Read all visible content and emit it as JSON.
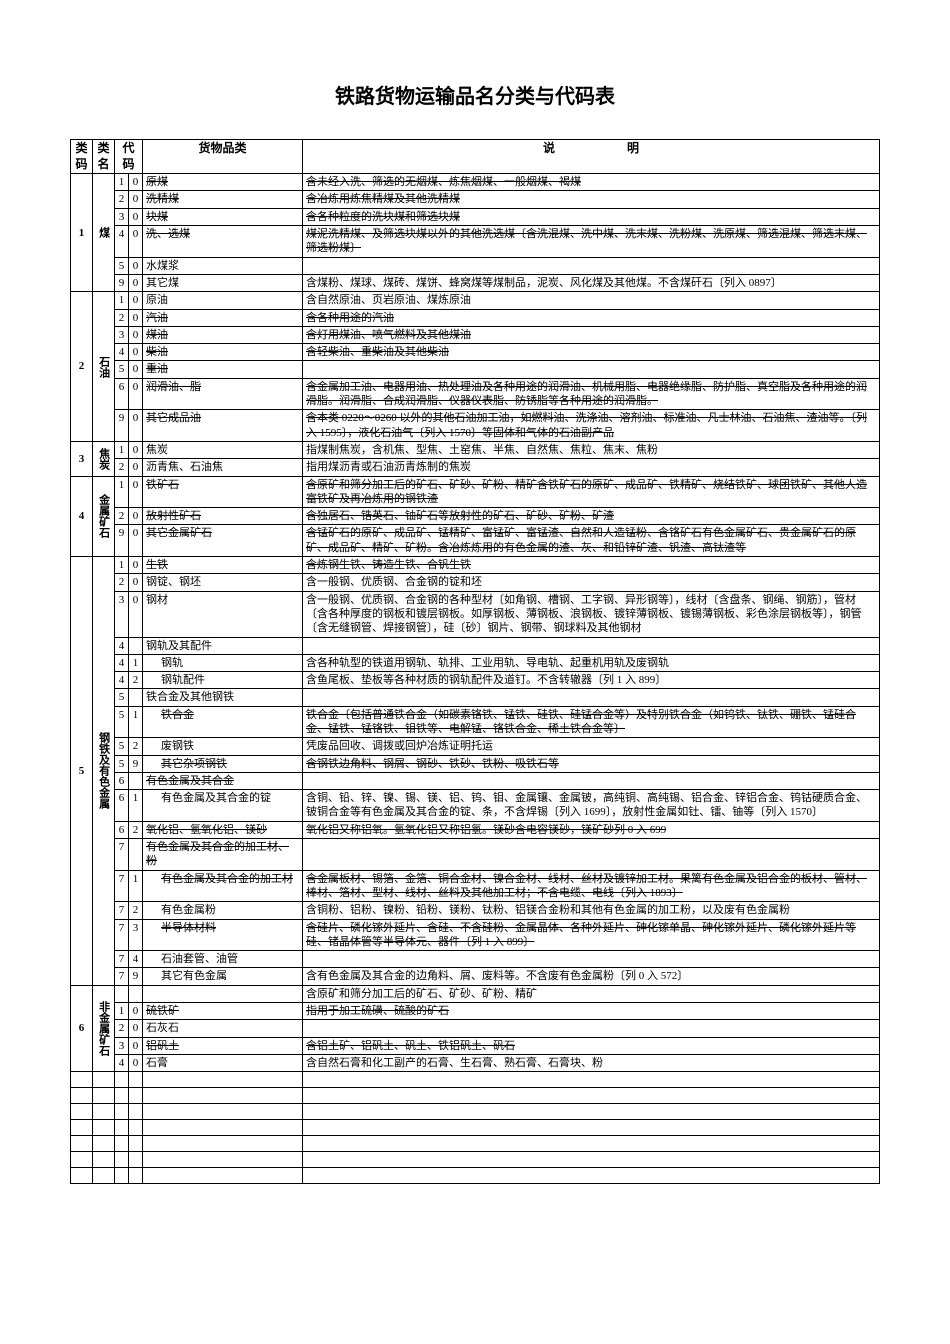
{
  "title": "铁路货物运输品名分类与代码表",
  "headers": {
    "code1": "类码",
    "code2": "类名",
    "code3": "代码",
    "name": "货物品类",
    "desc": "说　　　　　　明"
  },
  "groups": [
    {
      "code": "1",
      "name": "煤",
      "rows": [
        {
          "c3": "1",
          "c4": "0",
          "name": "原煤",
          "desc": "含未经入洗、筛选的无烟煤、炼焦烟煤、一般烟煤、褐煤",
          "strike": true
        },
        {
          "c3": "2",
          "c4": "0",
          "name": "洗精煤",
          "desc": "含冶炼用炼焦精煤及其他洗精煤",
          "strike": true
        },
        {
          "c3": "3",
          "c4": "0",
          "name": "块煤",
          "desc": "含各种粒度的洗块煤和筛选块煤",
          "strike": true
        },
        {
          "c3": "4",
          "c4": "0",
          "name": "洗、选煤",
          "desc": "煤泥洗精煤、及筛选块煤以外的其他洗选煤〔含洗混煤、洗中煤、洗末煤、洗粉煤、洗原煤、筛选混煤、筛选末煤、筛选粉煤〕",
          "strike": true
        },
        {
          "c3": "5",
          "c4": "0",
          "name": "水煤浆",
          "desc": ""
        },
        {
          "c3": "9",
          "c4": "0",
          "name": "其它煤",
          "desc": "含煤粉、煤球、煤砖、煤饼、蜂窝煤等煤制品，泥炭、风化煤及其他煤。不含煤矸石〔列入 0897〕"
        }
      ]
    },
    {
      "code": "2",
      "name": "石油",
      "rows": [
        {
          "c3": "1",
          "c4": "0",
          "name": "原油",
          "desc": "含自然原油、页岩原油、煤炼原油"
        },
        {
          "c3": "2",
          "c4": "0",
          "name": "汽油",
          "desc": "含各种用途的汽油",
          "strike": true
        },
        {
          "c3": "3",
          "c4": "0",
          "name": "煤油",
          "desc": "含灯用煤油、喷气燃料及其他煤油",
          "strike": true
        },
        {
          "c3": "4",
          "c4": "0",
          "name": "柴油",
          "desc": "含轻柴油、重柴油及其他柴油",
          "strike": true
        },
        {
          "c3": "5",
          "c4": "0",
          "name": "重油",
          "desc": "",
          "strike": true
        },
        {
          "c3": "6",
          "c4": "0",
          "name": "润滑油、脂",
          "desc": "含金属加工油、电器用油、热处理油及各种用途的润滑油、机械用脂、电器绝缘脂、防护脂、真空脂及各种用途的润滑脂。润滑脂、合成润滑脂、仪器仪表脂、防锈脂等各种用途的润滑脂。",
          "strike": true
        },
        {
          "c3": "9",
          "c4": "0",
          "name": "其它成品油",
          "desc": "含本类 0220～0260 以外的其他石油加工油，如燃料油、洗涤油、溶剂油、标准油、凡士林油、石油焦、渣油等。〔列入 1595〕，液化石油气〔列入 1570〕等固体和气体的石油副产品",
          "strike": true
        }
      ]
    },
    {
      "code": "3",
      "name": "焦炭",
      "rows": [
        {
          "c3": "1",
          "c4": "0",
          "name": "焦炭",
          "desc": "指煤制焦炭，含机焦、型焦、土窑焦、半焦、自然焦、焦粒、焦末、焦粉"
        },
        {
          "c3": "2",
          "c4": "0",
          "name": "沥青焦、石油焦",
          "desc": "指用煤沥青或石油沥青炼制的焦炭"
        }
      ]
    },
    {
      "code": "4",
      "name": "金属矿石",
      "rows": [
        {
          "c3": "1",
          "c4": "0",
          "name": "铁矿石",
          "desc": "含原矿和筛分加工后的矿石、矿砂、矿粉、精矿含铁矿石的原矿、成品矿、铁精矿、烧结铁矿、球团铁矿、其他人造富铁矿及再冶炼用的钢铁渣",
          "strike": true
        },
        {
          "c3": "2",
          "c4": "0",
          "name": "放射性矿石",
          "desc": "含独居石、锆英石、铀矿石等放射性的矿石、矿砂、矿粉、矿渣",
          "strike": true
        },
        {
          "c3": "9",
          "c4": "0",
          "name": "其它金属矿石",
          "desc": "含锰矿石的原矿、成品矿、锰精矿、富锰矿、富锰渣、自然和人造锰粉、含铬矿石有色金属矿石、贵金属矿石的原矿、成品矿、精矿、矿粉。含冶炼炼用的有色金属的渣、灰、和铅锌矿渣、钒渣、高钛渣等",
          "strike": true
        }
      ]
    },
    {
      "code": "5",
      "name": "钢铁及有色金属",
      "rows": [
        {
          "c3": "1",
          "c4": "0",
          "name": "生铁",
          "desc": "含炼钢生铁、铸造生铁、合钒生铁",
          "strike": true
        },
        {
          "c3": "2",
          "c4": "0",
          "name": "钢锭、钢坯",
          "desc": "含一般钢、优质钢、合金钢的锭和坯"
        },
        {
          "c3": "3",
          "c4": "0",
          "name": "钢材",
          "desc": "含一般钢、优质钢、合金钢的各种型材〔如角钢、槽钢、工字钢、异形钢等〕，线材〔含盘条、钢绳、钢筋〕，管材〔含各种厚度的钢板和镀层钢板。如厚钢板、薄钢板、浪钢板、镀锌薄钢板、镀锡薄钢板、彩色涂层钢板等〕，钢管〔含无缝钢管、焊接钢管〕，硅〔砂〕钢片、钢带、钢球料及其他钢材"
        },
        {
          "c3": "4",
          "c4": "",
          "name": "钢轨及其配件",
          "desc": ""
        },
        {
          "c3": "4",
          "c4": "1",
          "name": "钢轨",
          "desc": "含各种轨型的铁道用钢轨、轨排、工业用轨、导电轨、起重机用轨及废钢轨",
          "indent": true
        },
        {
          "c3": "4",
          "c4": "2",
          "name": "钢轨配件",
          "desc": "含鱼尾板、垫板等各种材质的钢轨配件及道钉。不含转辙器〔列 1 入 899〕",
          "indent": true
        },
        {
          "c3": "5",
          "c4": "",
          "name": "铁合金及其他钢铁",
          "desc": ""
        },
        {
          "c3": "5",
          "c4": "1",
          "name": "铁合金",
          "desc": "铁合金〔包括普通铁合金（如碳素铬铁、锰铁、硅铁、硅锰合金等）及特别铁合金（如钨铁、钛铁、硼铁、锰硅合金、锰铁、锰铬铁、钼铁等、电解锰、铬铁合金、稀土铁合金等〕",
          "strike": true,
          "indent": true
        },
        {
          "c3": "5",
          "c4": "2",
          "name": "废钢铁",
          "desc": "凭废品回收、调拨或回炉冶炼证明托运",
          "indent": true
        },
        {
          "c3": "5",
          "c4": "9",
          "name": "其它杂项钢铁",
          "desc": "含钢铁边角料、钢屑、钢砂、铁砂、铁粉、吸铁石等",
          "strike": true,
          "indent": true
        },
        {
          "c3": "6",
          "c4": "",
          "name": "有色金属及其合金",
          "desc": "",
          "strike": true
        },
        {
          "c3": "6",
          "c4": "1",
          "name": "有色金属及其合金的锭",
          "desc": "含铜、铅、锌、镍、锡、镁、铝、钨、钼、金属镶、金属铍，高纯铜、高纯锡、铝合金、锌铝合金、钨钴硬质合金、铍铜合金等有色金属及其合金的锭、条，不含焊锡〔列入 1699〕，放射性金属如钍、镭、铀等〔列入 1570〕",
          "indent": true
        },
        {
          "c3": "6",
          "c4": "2",
          "name": "氧化铝、氢氧化铝、镁砂",
          "desc": "氧化铝又称铝氧。氢氧化铝又称铝氢。镁砂含电容镁砂，镁矿砂列 0 入 699",
          "strike": true
        },
        {
          "c3": "7",
          "c4": "",
          "name": "有色金属及其合金的加工材、粉",
          "desc": "",
          "strike": true
        },
        {
          "c3": "7",
          "c4": "1",
          "name": "有色金属及其合金的加工材",
          "desc": "含金属板材、锡箔、金箔、铜合金材、镍合金材、线材、丝材及镀锌加工材。果篱有色金属及铝合金的板材、管材、棒材、箔材、型材、线材、丝料及其他加工材；不含电缆、电线〔列入 1893〕",
          "strike": true,
          "indent": true
        },
        {
          "c3": "7",
          "c4": "2",
          "name": "有色金属粉",
          "desc": "含铜粉、铝粉、镍粉、铅粉、镁粉、钛粉、铝镁合金粉和其他有色金属的加工粉，以及废有色金属粉",
          "indent": true
        },
        {
          "c3": "7",
          "c4": "3",
          "name": "半导体材料",
          "desc": "含硅片、磷化镓外延片、含硅、不含硅粉、金属晶体、各种外延片、砷化镓单晶、砷化镓外延片、磷化镓外延片等硅、锗晶体管等半导体元、器件〔列 1 入 899〕",
          "strike": true,
          "indent": true
        },
        {
          "c3": "7",
          "c4": "4",
          "name": "石油套管、油管",
          "desc": "",
          "indent": true
        },
        {
          "c3": "7",
          "c4": "9",
          "name": "其它有色金属",
          "desc": "含有色金属及其合金的边角料、屑、废料等。不含废有色金属粉〔列 0 入 572〕",
          "indent": true
        }
      ]
    },
    {
      "code": "6",
      "name": "非金属矿石",
      "rows": [
        {
          "c3": "",
          "c4": "",
          "name": "",
          "desc": "含原矿和筛分加工后的矿石、矿砂、矿粉、精矿"
        },
        {
          "c3": "1",
          "c4": "0",
          "name": "硫铁矿",
          "desc": "指用于加工硫磺、硫酸的矿石",
          "strike": true
        },
        {
          "c3": "2",
          "c4": "0",
          "name": "石灰石",
          "desc": ""
        },
        {
          "c3": "3",
          "c4": "0",
          "name": "铝矾土",
          "desc": "含铝土矿、铝矾土、矾土、铁铝矾土、矾石",
          "strike": true
        },
        {
          "c3": "4",
          "c4": "0",
          "name": "石膏",
          "desc": "含自然石膏和化工副产的石膏、生石膏、熟石膏、石膏块、粉"
        }
      ]
    }
  ]
}
